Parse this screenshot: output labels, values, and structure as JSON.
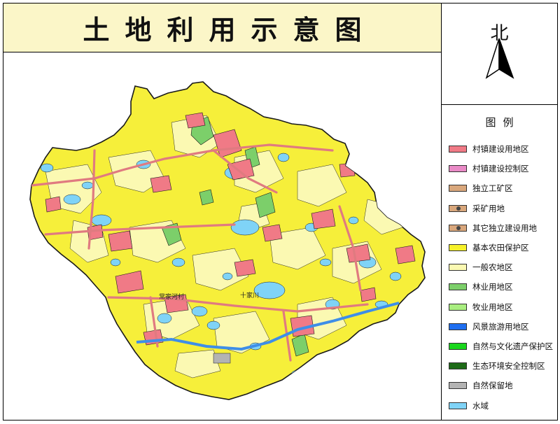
{
  "title": "土地利用示意图",
  "north_label": "北",
  "legend": {
    "title": "图例",
    "items": [
      {
        "label": "村镇建设用地区",
        "color": "#f07a86"
      },
      {
        "label": "村镇建设控制区",
        "color": "#e98ac6"
      },
      {
        "label": "独立工矿区",
        "color": "#d9a77c"
      },
      {
        "label": "采矿用地",
        "color": "#d9a77c",
        "marker": "dot"
      },
      {
        "label": "其它独立建设用地",
        "color": "#d9a77c",
        "marker": "dot"
      },
      {
        "label": "基本农田保护区",
        "color": "#f6f12a"
      },
      {
        "label": "一般农地区",
        "color": "#fbf9b2"
      },
      {
        "label": "林业用地区",
        "color": "#7ccf6a"
      },
      {
        "label": "牧业用地区",
        "color": "#a9ee80"
      },
      {
        "label": "风景旅游用地区",
        "color": "#1e6ef0"
      },
      {
        "label": "自然与文化遗产保护区",
        "color": "#19d61c"
      },
      {
        "label": "生态环境安全控制区",
        "color": "#1d6a17"
      },
      {
        "label": "自然保留地",
        "color": "#b3b3b3"
      },
      {
        "label": "水域",
        "color": "#7fd3f7"
      }
    ]
  },
  "map": {
    "colors": {
      "farmland_protection": "#f6ef3a",
      "general_farmland": "#fbf9b2",
      "village": "#f07a86",
      "water": "#7fd3f7",
      "forest": "#7ccf6a",
      "river": "#3e8ee8",
      "road": "#e07a80"
    },
    "place_labels": [
      "常家河村",
      "十家川"
    ]
  }
}
